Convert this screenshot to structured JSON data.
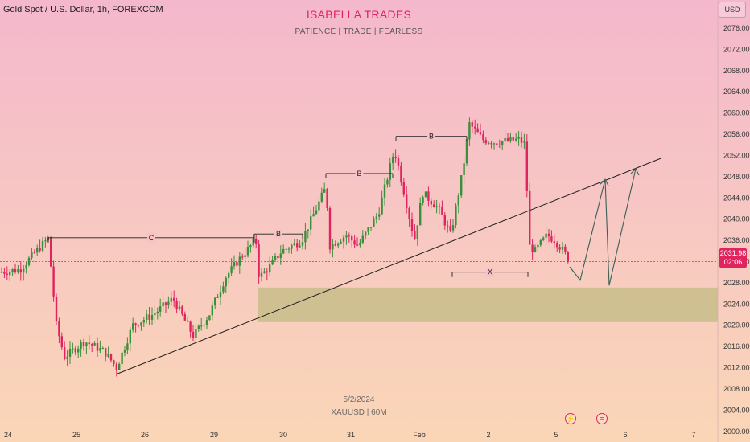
{
  "header": {
    "symbol_title": "Gold Spot / U.S. Dollar, 1h, FOREXCOM",
    "brand_title": "ISABELLA TRADES",
    "brand_subtitle": "PATIENCE  |  TRADE  |  FEARLESS",
    "currency": "USD"
  },
  "watermark": {
    "date": "5/2/2024",
    "symbol": "XAUUSD  |  60M"
  },
  "last_price": {
    "value": "2031.98",
    "countdown": "02:06"
  },
  "colors": {
    "up": "#3a8f3a",
    "down": "#e0245e",
    "zone": "#b9b87a",
    "line": "#222222",
    "accent": "#e0245e"
  },
  "chart_data": {
    "type": "candlestick",
    "ylim": [
      1998,
      2081
    ],
    "y_ticks": [
      2000,
      2004,
      2008,
      2012,
      2016,
      2020,
      2024,
      2028,
      2032,
      2036,
      2040,
      2044,
      2048,
      2052,
      2056,
      2060,
      2064,
      2068,
      2072,
      2076
    ],
    "x_labels": [
      "24",
      "25",
      "26",
      "29",
      "30",
      "31",
      "Feb",
      "2",
      "5",
      "6",
      "7"
    ],
    "support_zone": [
      2020.6,
      2027.1
    ],
    "last_price": 2031.98,
    "annotations": [
      {
        "label": "C",
        "level": 2036.5
      },
      {
        "label": "B",
        "level": 2037.2
      },
      {
        "label": "B",
        "level": 2048.6
      },
      {
        "label": "B",
        "level": 2055.6
      },
      {
        "label": "X",
        "level": 2030.0
      }
    ],
    "trendline": {
      "start_price": 2010.8,
      "end_price": 2051.5
    },
    "projection_path": [
      2031,
      2028.5,
      2047.5,
      2027.5,
      2049.5
    ]
  }
}
